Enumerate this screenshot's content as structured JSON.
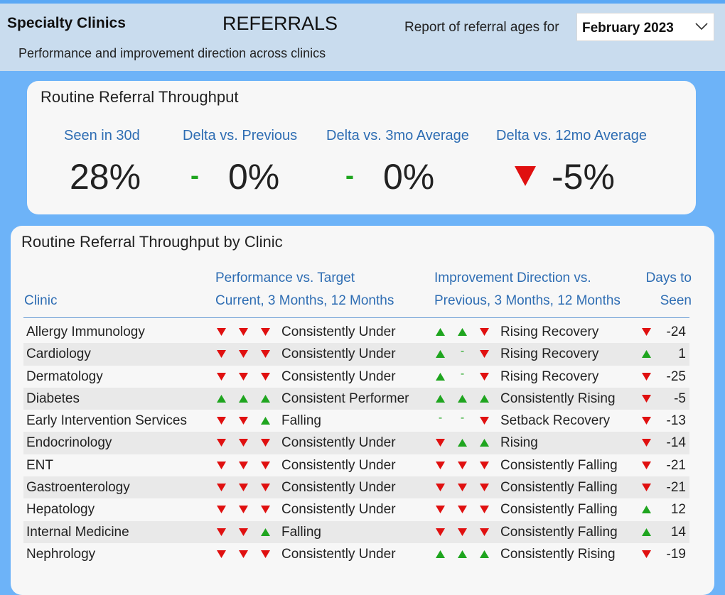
{
  "header": {
    "app_title": "Specialty Clinics",
    "subtitle": "Performance and improvement direction across clinics",
    "page_title": "REFERRALS",
    "report_label": "Report of referral ages for",
    "month_selected": "February 2023"
  },
  "colors": {
    "up": "#1fa51f",
    "down": "#e01010",
    "accent": "#2e6db3",
    "background": "#6db3f8"
  },
  "kpi": {
    "title": "Routine Referral Throughput",
    "items": [
      {
        "label": "Seen in 30d",
        "value": "28%",
        "indicator": "none"
      },
      {
        "label": "Delta vs. Previous",
        "value": "0%",
        "indicator": "flat"
      },
      {
        "label": "Delta vs. 3mo Average",
        "value": "0%",
        "indicator": "flat"
      },
      {
        "label": "Delta vs. 12mo Average",
        "value": "-5%",
        "indicator": "down"
      }
    ]
  },
  "table": {
    "title": "Routine Referral Throughput by Clinic",
    "headers": {
      "clinic": "Clinic",
      "performance_line1": "Performance vs. Target",
      "performance_line2": "Current, 3 Months, 12 Months",
      "improvement_line1": "Improvement Direction vs.",
      "improvement_line2": "Previous, 3 Months, 12 Months",
      "days_line1": "Days to",
      "days_line2": "Seen"
    },
    "rows": [
      {
        "clinic": "Allergy Immunology",
        "perf": [
          "down",
          "down",
          "down"
        ],
        "perf_label": "Consistently Under",
        "imp": [
          "up",
          "up",
          "down"
        ],
        "imp_label": "Rising Recovery",
        "days_dir": "down",
        "days": "-24"
      },
      {
        "clinic": "Cardiology",
        "perf": [
          "down",
          "down",
          "down"
        ],
        "perf_label": "Consistently Under",
        "imp": [
          "up",
          "flat",
          "down"
        ],
        "imp_label": "Rising Recovery",
        "days_dir": "up",
        "days": "1"
      },
      {
        "clinic": "Dermatology",
        "perf": [
          "down",
          "down",
          "down"
        ],
        "perf_label": "Consistently Under",
        "imp": [
          "up",
          "flat",
          "down"
        ],
        "imp_label": "Rising Recovery",
        "days_dir": "down",
        "days": "-25"
      },
      {
        "clinic": "Diabetes",
        "perf": [
          "up",
          "up",
          "up"
        ],
        "perf_label": "Consistent Performer",
        "imp": [
          "up",
          "up",
          "up"
        ],
        "imp_label": "Consistently Rising",
        "days_dir": "down",
        "days": "-5"
      },
      {
        "clinic": "Early Intervention Services",
        "perf": [
          "down",
          "down",
          "up"
        ],
        "perf_label": "Falling",
        "imp": [
          "flat",
          "flat",
          "down"
        ],
        "imp_label": "Setback Recovery",
        "days_dir": "down",
        "days": "-13"
      },
      {
        "clinic": "Endocrinology",
        "perf": [
          "down",
          "down",
          "down"
        ],
        "perf_label": "Consistently Under",
        "imp": [
          "down",
          "up",
          "up"
        ],
        "imp_label": "Rising",
        "days_dir": "down",
        "days": "-14"
      },
      {
        "clinic": "ENT",
        "perf": [
          "down",
          "down",
          "down"
        ],
        "perf_label": "Consistently Under",
        "imp": [
          "down",
          "down",
          "down"
        ],
        "imp_label": "Consistently Falling",
        "days_dir": "down",
        "days": "-21"
      },
      {
        "clinic": "Gastroenterology",
        "perf": [
          "down",
          "down",
          "down"
        ],
        "perf_label": "Consistently Under",
        "imp": [
          "down",
          "down",
          "down"
        ],
        "imp_label": "Consistently Falling",
        "days_dir": "down",
        "days": "-21"
      },
      {
        "clinic": "Hepatology",
        "perf": [
          "down",
          "down",
          "down"
        ],
        "perf_label": "Consistently Under",
        "imp": [
          "down",
          "down",
          "down"
        ],
        "imp_label": "Consistently Falling",
        "days_dir": "up",
        "days": "12"
      },
      {
        "clinic": "Internal Medicine",
        "perf": [
          "down",
          "down",
          "up"
        ],
        "perf_label": "Falling",
        "imp": [
          "down",
          "down",
          "down"
        ],
        "imp_label": "Consistently Falling",
        "days_dir": "up",
        "days": "14"
      },
      {
        "clinic": "Nephrology",
        "perf": [
          "down",
          "down",
          "down"
        ],
        "perf_label": "Consistently Under",
        "imp": [
          "up",
          "up",
          "up"
        ],
        "imp_label": "Consistently Rising",
        "days_dir": "down",
        "days": "-19"
      }
    ]
  }
}
